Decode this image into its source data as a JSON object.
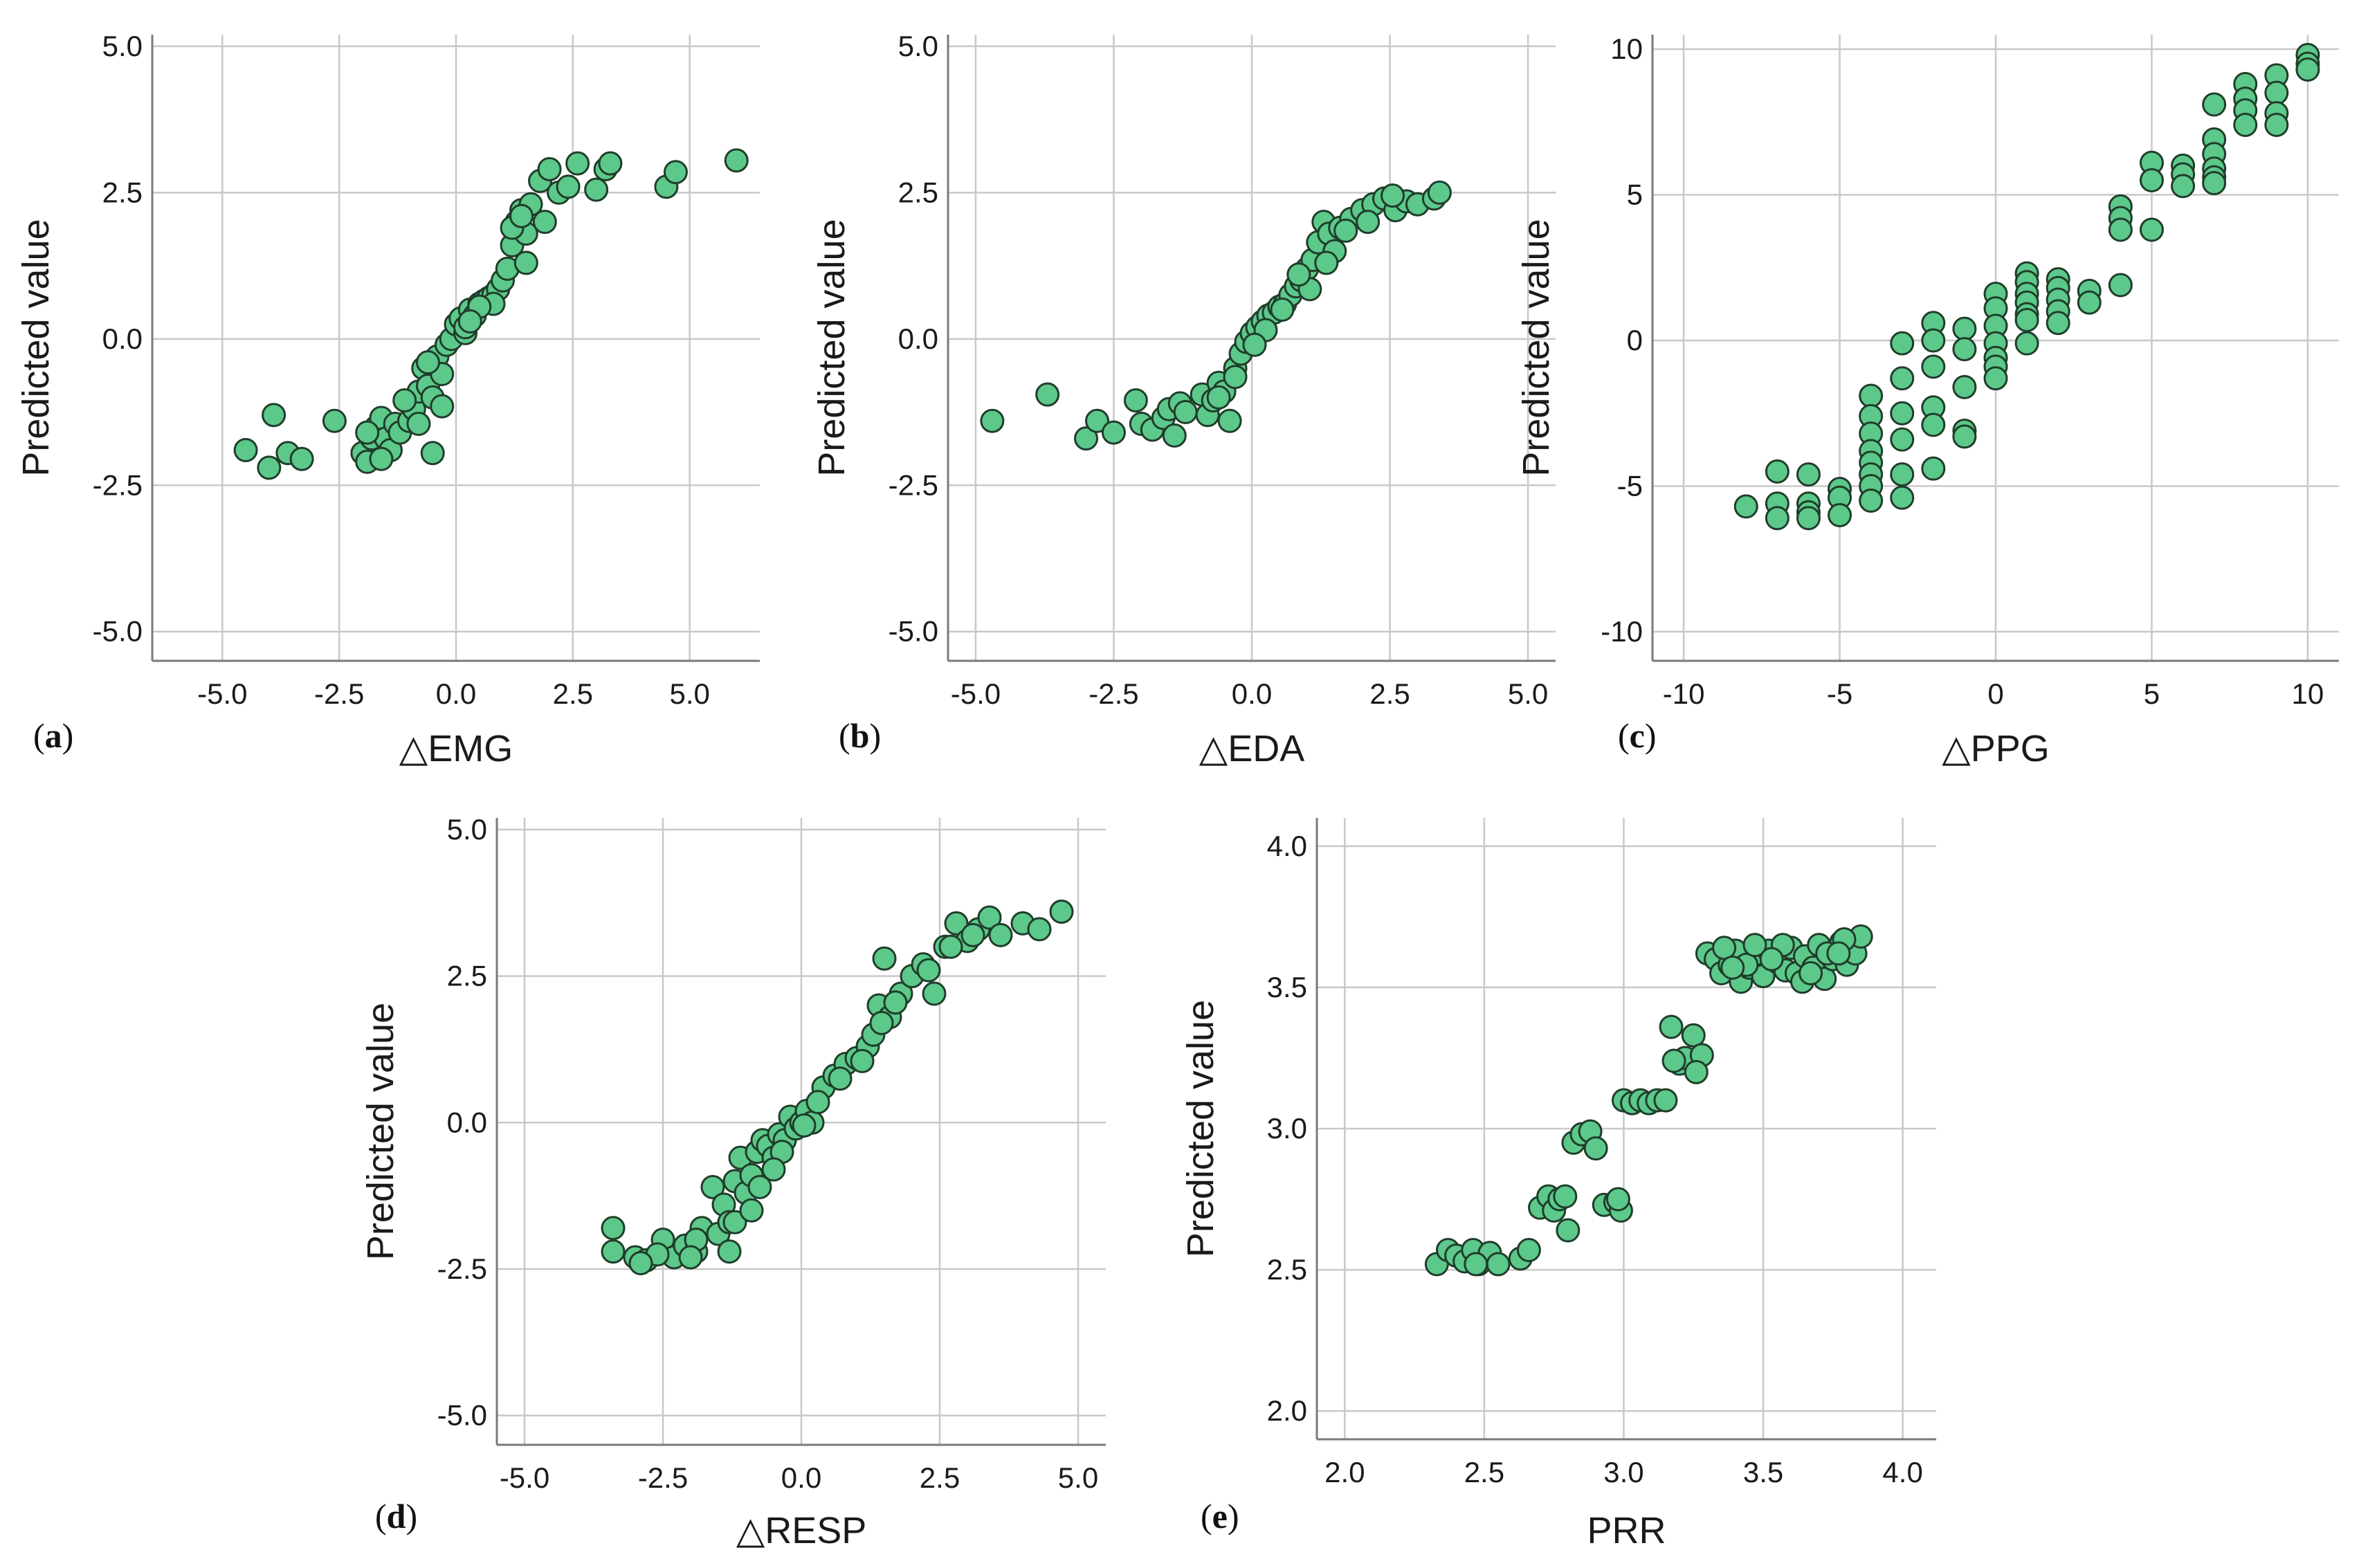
{
  "colors": {
    "marker_fill": "#5cc88a",
    "marker_edge": "#1f3d2a",
    "grid": "#c8c8c8"
  },
  "chart_data": [
    {
      "id": "a",
      "letter": "a",
      "type": "scatter",
      "xlabel": "△EMG",
      "ylabel": "Predicted value",
      "xlim": [
        -6.5,
        6.5
      ],
      "ylim": [
        -5.5,
        5.2
      ],
      "xticks": [
        -5.0,
        -2.5,
        0.0,
        2.5,
        5.0
      ],
      "xtick_labels": [
        "-5.0",
        "-2.5",
        "0.0",
        "2.5",
        "5.0"
      ],
      "yticks": [
        -5.0,
        -2.5,
        0.0,
        2.5,
        5.0
      ],
      "ytick_labels": [
        "-5.0",
        "-2.5",
        "0.0",
        "2.5",
        "5.0"
      ],
      "x": [
        -4.5,
        -4.0,
        -3.9,
        -3.6,
        -3.3,
        -2.6,
        -2.0,
        -1.9,
        -1.8,
        -1.7,
        -1.6,
        -1.5,
        -1.4,
        -1.3,
        -1.2,
        -1.0,
        -0.9,
        -0.8,
        -0.7,
        -0.6,
        -0.5,
        -0.4,
        -0.3,
        -0.2,
        -0.1,
        0.0,
        0.1,
        0.2,
        0.3,
        0.4,
        0.5,
        0.6,
        0.7,
        0.8,
        0.9,
        1.0,
        1.1,
        1.2,
        1.3,
        1.4,
        1.5,
        1.6,
        1.8,
        2.0,
        2.2,
        2.4,
        2.6,
        3.0,
        3.2,
        3.3,
        4.5,
        4.7,
        6.0,
        -0.5,
        -0.8,
        -1.6,
        0.2,
        0.8,
        1.5,
        1.9,
        -1.1,
        -0.3,
        0.5,
        1.2,
        -1.9,
        -0.6,
        0.3,
        1.4
      ],
      "y": [
        -1.9,
        -2.2,
        -1.3,
        -1.95,
        -2.05,
        -1.4,
        -1.95,
        -2.1,
        -1.7,
        -1.5,
        -1.35,
        -1.7,
        -1.9,
        -1.45,
        -1.6,
        -1.4,
        -1.2,
        -0.9,
        -0.5,
        -0.8,
        -1.0,
        -0.3,
        -0.6,
        -0.1,
        0.0,
        0.25,
        0.35,
        0.1,
        0.5,
        0.4,
        0.6,
        0.65,
        0.7,
        0.75,
        0.85,
        1.0,
        1.2,
        1.6,
        2.0,
        2.2,
        1.8,
        2.3,
        2.7,
        2.9,
        2.5,
        2.6,
        3.0,
        2.55,
        2.9,
        3.0,
        2.6,
        2.85,
        3.05,
        -1.95,
        -1.45,
        -2.05,
        0.2,
        0.6,
        1.3,
        2.0,
        -1.05,
        -1.15,
        0.55,
        1.9,
        -1.6,
        -0.4,
        0.3,
        2.1
      ]
    },
    {
      "id": "b",
      "letter": "b",
      "type": "scatter",
      "xlabel": "△EDA",
      "ylabel": "Predicted value",
      "xlim": [
        -5.5,
        5.5
      ],
      "ylim": [
        -5.5,
        5.2
      ],
      "xticks": [
        -5.0,
        -2.5,
        0.0,
        2.5,
        5.0
      ],
      "xtick_labels": [
        "-5.0",
        "-2.5",
        "0.0",
        "2.5",
        "5.0"
      ],
      "yticks": [
        -5.0,
        -2.5,
        0.0,
        2.5,
        5.0
      ],
      "ytick_labels": [
        "-5.0",
        "-2.5",
        "0.0",
        "2.5",
        "5.0"
      ],
      "x": [
        -4.7,
        -3.7,
        -3.0,
        -2.8,
        -2.5,
        -2.1,
        -2.0,
        -1.8,
        -1.6,
        -1.5,
        -1.4,
        -1.3,
        -1.2,
        -0.9,
        -0.8,
        -0.7,
        -0.6,
        -0.5,
        -0.4,
        -0.3,
        -0.2,
        -0.1,
        0.0,
        0.1,
        0.2,
        0.3,
        0.4,
        0.5,
        0.6,
        0.7,
        0.8,
        0.9,
        1.0,
        1.1,
        1.2,
        1.3,
        1.4,
        1.5,
        1.6,
        1.8,
        2.0,
        2.2,
        2.4,
        2.6,
        2.8,
        3.0,
        3.3,
        3.4,
        -0.3,
        0.25,
        0.55,
        1.05,
        1.35,
        2.1,
        2.55,
        -0.6,
        0.05,
        0.85,
        1.7
      ],
      "y": [
        -1.4,
        -0.95,
        -1.7,
        -1.4,
        -1.6,
        -1.05,
        -1.45,
        -1.55,
        -1.35,
        -1.2,
        -1.65,
        -1.1,
        -1.25,
        -0.95,
        -1.3,
        -1.05,
        -0.75,
        -0.9,
        -1.4,
        -0.5,
        -0.25,
        -0.05,
        0.1,
        0.2,
        0.3,
        0.4,
        0.45,
        0.55,
        0.6,
        0.75,
        0.9,
        1.0,
        1.2,
        1.35,
        1.65,
        2.0,
        1.8,
        1.5,
        1.9,
        2.05,
        2.2,
        2.3,
        2.4,
        2.2,
        2.35,
        2.3,
        2.4,
        2.5,
        -0.65,
        0.15,
        0.5,
        0.85,
        1.3,
        2.0,
        2.45,
        -1.0,
        -0.1,
        1.1,
        1.85
      ]
    },
    {
      "id": "c",
      "letter": "c",
      "type": "scatter",
      "xlabel": "△PPG",
      "ylabel": "Predicted value",
      "xlim": [
        -11,
        11
      ],
      "ylim": [
        -11,
        10.5
      ],
      "xticks": [
        -10,
        -5,
        0,
        5,
        10
      ],
      "xtick_labels": [
        "-10",
        "-5",
        "0",
        "5",
        "10"
      ],
      "yticks": [
        -10,
        -5,
        0,
        5,
        10
      ],
      "ytick_labels": [
        "-10",
        "-5",
        "0",
        "5",
        "10"
      ],
      "x": [
        -8,
        -7,
        -7,
        -7,
        -6,
        -6,
        -6,
        -6,
        -5,
        -5,
        -5,
        -4,
        -4,
        -4,
        -4,
        -4,
        -4,
        -4,
        -4,
        -3,
        -3,
        -3,
        -3,
        -3,
        -3,
        -2,
        -2,
        -2,
        -2,
        -2,
        -2,
        -1,
        -1,
        -1,
        -1,
        -1,
        0,
        0,
        0,
        0,
        0,
        0,
        0,
        1,
        1,
        1,
        1,
        1,
        1,
        1,
        2,
        2,
        2,
        2,
        2,
        3,
        3,
        4,
        4,
        4,
        4,
        5,
        5,
        5,
        6,
        6,
        6,
        7,
        7,
        7,
        7,
        7,
        7,
        8,
        8,
        8,
        8,
        9,
        9,
        9,
        9,
        10,
        10,
        10
      ],
      "y": [
        -5.7,
        -4.5,
        -5.6,
        -6.1,
        -4.6,
        -5.6,
        -5.9,
        -6.1,
        -5.1,
        -5.4,
        -6.0,
        -1.9,
        -2.6,
        -3.2,
        -3.8,
        -4.2,
        -4.6,
        -5.0,
        -5.5,
        -0.1,
        -1.3,
        -2.5,
        -3.4,
        -4.6,
        -5.4,
        0.6,
        0.0,
        -0.9,
        -2.3,
        -2.9,
        -4.4,
        0.4,
        -0.3,
        -1.6,
        -3.1,
        -3.3,
        1.6,
        1.1,
        0.5,
        -0.1,
        -0.6,
        -0.9,
        -1.3,
        2.3,
        2.0,
        1.6,
        1.3,
        0.9,
        0.7,
        -0.1,
        2.1,
        1.8,
        1.4,
        1.0,
        0.6,
        1.7,
        1.3,
        4.6,
        4.2,
        3.8,
        1.9,
        6.1,
        5.5,
        3.8,
        6.0,
        5.7,
        5.3,
        8.1,
        6.9,
        6.4,
        5.9,
        5.6,
        5.4,
        8.8,
        8.3,
        7.9,
        7.4,
        9.1,
        8.5,
        7.8,
        7.4,
        9.8,
        9.5,
        9.3
      ]
    },
    {
      "id": "d",
      "letter": "d",
      "type": "scatter",
      "xlabel": "△RESP",
      "ylabel": "Predicted value",
      "xlim": [
        -5.5,
        5.5
      ],
      "ylim": [
        -5.5,
        5.2
      ],
      "xticks": [
        -5.0,
        -2.5,
        0.0,
        2.5,
        5.0
      ],
      "xtick_labels": [
        "-5.0",
        "-2.5",
        "0.0",
        "2.5",
        "5.0"
      ],
      "yticks": [
        -5.0,
        -2.5,
        0.0,
        2.5,
        5.0
      ],
      "ytick_labels": [
        "-5.0",
        "-2.5",
        "0.0",
        "2.5",
        "5.0"
      ],
      "x": [
        -3.4,
        -3.4,
        -3.0,
        -2.8,
        -2.5,
        -2.3,
        -2.1,
        -1.9,
        -1.8,
        -1.6,
        -1.5,
        -1.4,
        -1.3,
        -1.2,
        -1.1,
        -1.0,
        -0.9,
        -0.8,
        -0.7,
        -0.6,
        -0.5,
        -0.4,
        -0.3,
        -0.2,
        -0.1,
        0.0,
        0.1,
        0.2,
        0.4,
        0.6,
        0.8,
        1.0,
        1.2,
        1.4,
        1.5,
        1.6,
        1.8,
        2.0,
        2.2,
        2.4,
        2.6,
        2.8,
        3.0,
        3.2,
        3.4,
        3.6,
        4.0,
        4.3,
        4.7,
        -2.6,
        -1.9,
        -1.2,
        -0.75,
        -0.35,
        0.3,
        1.1,
        1.7,
        2.3,
        3.1,
        -2.9,
        -1.3,
        -0.5,
        0.7,
        1.3,
        2.7,
        -2.0,
        -0.9,
        0.05,
        1.45
      ],
      "y": [
        -1.8,
        -2.2,
        -2.3,
        -2.35,
        -2.0,
        -2.3,
        -2.1,
        -2.2,
        -1.8,
        -1.1,
        -1.9,
        -1.4,
        -1.7,
        -1.0,
        -0.6,
        -1.2,
        -0.9,
        -0.5,
        -0.3,
        -0.4,
        -0.6,
        -0.2,
        -0.3,
        0.1,
        -0.1,
        0.0,
        0.2,
        0.0,
        0.6,
        0.8,
        1.0,
        1.1,
        1.3,
        2.0,
        2.8,
        1.8,
        2.2,
        2.5,
        2.7,
        2.2,
        3.0,
        3.4,
        3.1,
        3.3,
        3.5,
        3.2,
        3.4,
        3.3,
        3.6,
        -2.25,
        -2.0,
        -1.7,
        -1.1,
        -0.5,
        0.35,
        1.05,
        2.05,
        2.6,
        3.2,
        -2.4,
        -2.2,
        -0.8,
        0.75,
        1.5,
        3.0,
        -2.3,
        -1.5,
        -0.05,
        1.7
      ]
    },
    {
      "id": "e",
      "letter": "e",
      "type": "scatter",
      "xlabel": "PRR",
      "ylabel": "Predicted value",
      "xlim": [
        1.9,
        4.12
      ],
      "ylim": [
        1.9,
        4.1
      ],
      "xticks": [
        2.0,
        2.5,
        3.0,
        3.5,
        4.0
      ],
      "xtick_labels": [
        "2.0",
        "2.5",
        "3.0",
        "3.5",
        "4.0"
      ],
      "yticks": [
        2.0,
        2.5,
        3.0,
        3.5,
        4.0
      ],
      "ytick_labels": [
        "2.0",
        "2.5",
        "3.0",
        "3.5",
        "4.0"
      ],
      "x": [
        2.33,
        2.37,
        2.4,
        2.43,
        2.46,
        2.48,
        2.52,
        2.55,
        2.63,
        2.66,
        2.7,
        2.73,
        2.75,
        2.77,
        2.8,
        2.82,
        2.85,
        2.88,
        2.9,
        2.93,
        2.97,
        2.99,
        3.0,
        3.03,
        3.06,
        3.09,
        3.12,
        3.15,
        3.17,
        3.2,
        3.22,
        3.25,
        3.28,
        3.3,
        3.33,
        3.35,
        3.38,
        3.4,
        3.42,
        3.45,
        3.48,
        3.5,
        3.52,
        3.55,
        3.58,
        3.6,
        3.62,
        3.65,
        3.68,
        3.7,
        3.72,
        3.75,
        3.78,
        3.8,
        3.83,
        3.85,
        3.36,
        3.44,
        3.57,
        3.64,
        3.73,
        3.79,
        3.39,
        3.47,
        3.53,
        3.67,
        3.77,
        2.98,
        2.79,
        2.47,
        3.18,
        3.26
      ],
      "y": [
        2.52,
        2.57,
        2.55,
        2.53,
        2.57,
        2.52,
        2.56,
        2.52,
        2.54,
        2.57,
        2.72,
        2.76,
        2.71,
        2.75,
        2.64,
        2.95,
        2.98,
        2.99,
        2.93,
        2.73,
        2.74,
        2.71,
        3.1,
        3.09,
        3.1,
        3.09,
        3.1,
        3.1,
        3.36,
        3.23,
        3.25,
        3.33,
        3.26,
        3.62,
        3.6,
        3.55,
        3.58,
        3.63,
        3.52,
        3.57,
        3.62,
        3.54,
        3.63,
        3.59,
        3.56,
        3.64,
        3.55,
        3.61,
        3.57,
        3.65,
        3.53,
        3.6,
        3.66,
        3.58,
        3.62,
        3.68,
        3.64,
        3.58,
        3.65,
        3.52,
        3.62,
        3.67,
        3.57,
        3.65,
        3.6,
        3.55,
        3.62,
        2.75,
        2.76,
        2.52,
        3.24,
        3.2
      ]
    }
  ]
}
